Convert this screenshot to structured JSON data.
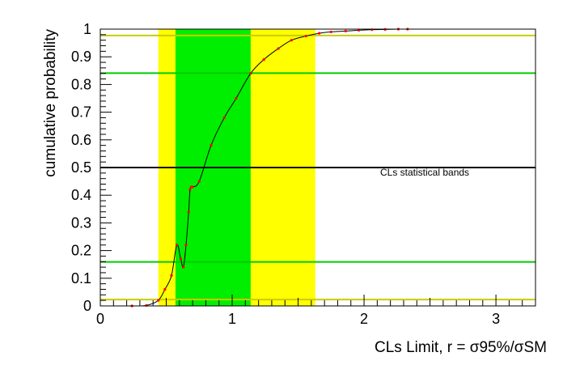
{
  "chart_data": {
    "type": "line",
    "title": "",
    "xlabel": "CLs Limit, r = σ95%/σSM",
    "ylabel": "cumulative probability",
    "xlim": [
      0,
      3.3
    ],
    "ylim": [
      0,
      1
    ],
    "x_ticks": [
      "0",
      "1",
      "2",
      "3"
    ],
    "y_ticks": [
      "0",
      "0.1",
      "0.2",
      "0.3",
      "0.4",
      "0.5",
      "0.6",
      "0.7",
      "0.8",
      "0.9",
      "1"
    ],
    "grid": false,
    "legend": "none",
    "annotation": "CLs statistical bands",
    "bands": {
      "two_sigma": {
        "x_range": [
          0.44,
          1.63
        ],
        "color": "#ffff00"
      },
      "one_sigma": {
        "x_range": [
          0.57,
          1.14
        ],
        "color": "#00ee00"
      }
    },
    "hlines": [
      {
        "name": "median",
        "y": 0.5,
        "color": "#000000"
      },
      {
        "name": "plus-one-sigma",
        "y": 0.841,
        "color": "#00cc00"
      },
      {
        "name": "minus-one-sigma",
        "y": 0.159,
        "color": "#00cc00"
      },
      {
        "name": "plus-two-sigma",
        "y": 0.977,
        "color": "#cccc00"
      },
      {
        "name": "minus-two-sigma",
        "y": 0.023,
        "color": "#cccc00"
      }
    ],
    "series": [
      {
        "color": "#000000",
        "marker_color": "#ff0000",
        "x": [
          0.24,
          0.35,
          0.44,
          0.49,
          0.54,
          0.58,
          0.61,
          0.63,
          0.65,
          0.67,
          0.68,
          0.69,
          0.7,
          0.75,
          0.84,
          0.94,
          1.03,
          1.14,
          1.24,
          1.35,
          1.45,
          1.56,
          1.66,
          1.75,
          1.86,
          1.96,
          2.06,
          2.16,
          2.26,
          2.33
        ],
        "y": [
          0.0,
          0.002,
          0.02,
          0.06,
          0.11,
          0.22,
          0.17,
          0.14,
          0.22,
          0.34,
          0.42,
          0.43,
          0.43,
          0.45,
          0.58,
          0.68,
          0.75,
          0.84,
          0.89,
          0.93,
          0.96,
          0.975,
          0.985,
          0.99,
          0.993,
          0.996,
          0.998,
          0.999,
          1.0,
          1.0
        ]
      }
    ]
  },
  "colors": {
    "frame": "#000000",
    "curve": "#000000",
    "marker": "#ff0000"
  }
}
